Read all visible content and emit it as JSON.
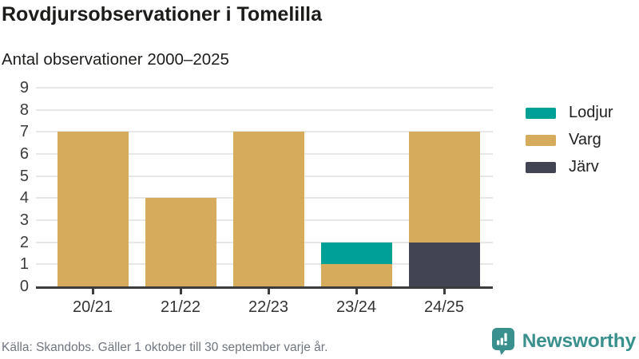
{
  "header": {
    "title": "Rovdjursobservationer i Tomelilla",
    "subtitle": "Antal observationer 2000–2025"
  },
  "chart_data": {
    "type": "bar",
    "stacked": true,
    "title": "Rovdjursobservationer i Tomelilla",
    "subtitle": "Antal observationer 2000–2025",
    "categories": [
      "20/21",
      "21/22",
      "22/23",
      "23/24",
      "24/25"
    ],
    "series": [
      {
        "name": "Lodjur",
        "color": "#00a096",
        "values": [
          0,
          0,
          0,
          1,
          0
        ]
      },
      {
        "name": "Varg",
        "color": "#d6ab5c",
        "values": [
          7,
          4,
          7,
          1,
          5
        ]
      },
      {
        "name": "Järv",
        "color": "#434453",
        "values": [
          0,
          0,
          0,
          0,
          2
        ]
      }
    ],
    "stack_order_bottom_to_top": [
      "Järv",
      "Varg",
      "Lodjur"
    ],
    "totals": [
      7,
      4,
      7,
      2,
      7
    ],
    "ylim": [
      0,
      9
    ],
    "yticks": [
      0,
      1,
      2,
      3,
      4,
      5,
      6,
      7,
      8,
      9
    ],
    "grid": "horizontal",
    "legend_position": "right"
  },
  "footer": {
    "source": "Källa: Skandobs. Gäller 1 oktober till 30 september varje år.",
    "brand": "Newsworthy",
    "brand_color": "#3a908d",
    "logo_icon": "bar-chart-speech-bubble-icon"
  },
  "colors": {
    "axis_line": "#3c3c3c",
    "gridline": "#e7e7e7",
    "tick_text": "#3c3c3c",
    "title_text": "#1c1c1a",
    "source_text": "#70767f",
    "background": "#ffffff"
  }
}
